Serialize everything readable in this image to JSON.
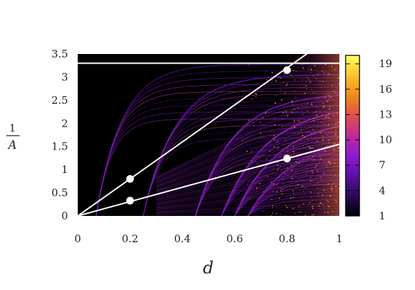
{
  "chart_data": {
    "type": "heatmap",
    "xlabel": "d",
    "ylabel": {
      "numerator": "1",
      "denominator": "A"
    },
    "xlim": [
      0,
      1
    ],
    "ylim": [
      0,
      3.5
    ],
    "x_ticks": [
      "0",
      "0.2",
      "0.4",
      "0.6",
      "0.8",
      "1"
    ],
    "y_ticks": [
      "0",
      "0.5",
      "1",
      "1.5",
      "2",
      "2.5",
      "3",
      "3.5"
    ],
    "colorbar": {
      "range": [
        1,
        20
      ],
      "ticks": [
        "1",
        "4",
        "7",
        "10",
        "13",
        "16",
        "19"
      ],
      "colors": [
        "#000000",
        "#2b0a55",
        "#5c10a0",
        "#8e1bd0",
        "#c02a9a",
        "#e2504a",
        "#f08a1c",
        "#fac32c",
        "#ffff60"
      ]
    },
    "horizontal_line": {
      "y": 3.3
    },
    "lines": [
      {
        "x": [
          0,
          0.9
        ],
        "y": [
          0,
          3.6
        ]
      },
      {
        "x": [
          0,
          1.0
        ],
        "y": [
          0,
          1.55
        ]
      }
    ],
    "markers": [
      {
        "x": 0.2,
        "y": 0.8
      },
      {
        "x": 0.8,
        "y": 3.15
      },
      {
        "x": 0.2,
        "y": 0.33
      },
      {
        "x": 0.8,
        "y": 1.24
      }
    ],
    "band_families": [
      {
        "x_start": 0.07,
        "y_end": 3.28,
        "k": 10
      },
      {
        "x_start": 0.25,
        "y_end": 3.06,
        "k": 8
      },
      {
        "x_start": 0.45,
        "y_end": 2.66,
        "k": 7
      },
      {
        "x_start": 0.55,
        "y_end": 2.4,
        "k": 6
      },
      {
        "x_start": 0.6,
        "y_end": 2.13,
        "k": 6
      },
      {
        "x_start": 0.65,
        "y_end": 1.9,
        "k": 5
      }
    ]
  }
}
